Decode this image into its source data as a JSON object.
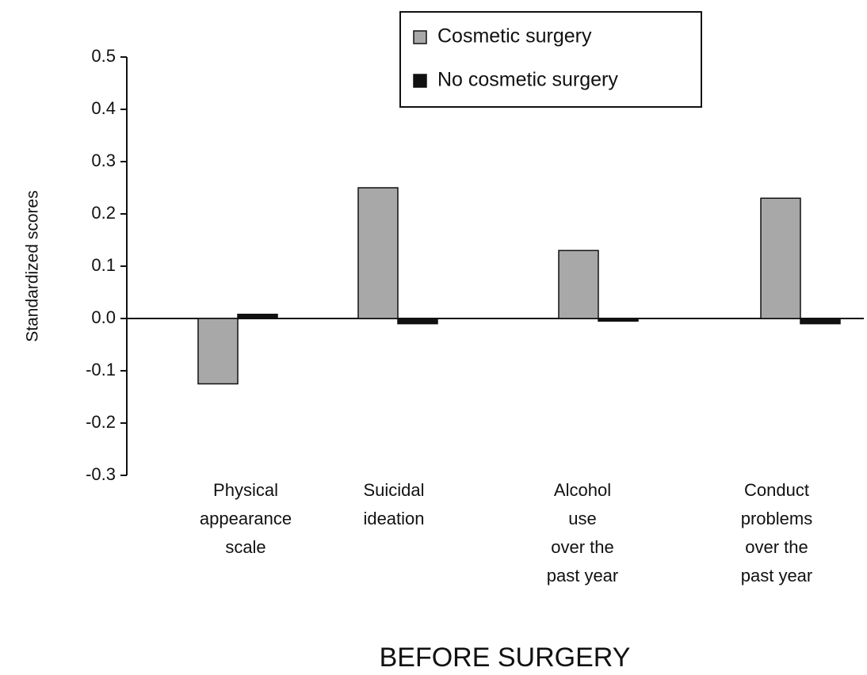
{
  "chart_data": {
    "type": "bar",
    "title": "BEFORE SURGERY",
    "y_label": "Standardized scores",
    "categories": [
      [
        "Physical",
        "appearance",
        "scale"
      ],
      [
        "Suicidal",
        "ideation"
      ],
      [
        "Alcohol",
        "use",
        "over the",
        "past year"
      ],
      [
        "Conduct",
        "problems",
        "over the",
        "past year"
      ]
    ],
    "series": [
      {
        "name": "Cosmetic surgery",
        "color": "#a8a8a8",
        "values": [
          -0.125,
          0.25,
          0.13,
          0.23
        ]
      },
      {
        "name": "No cosmetic surgery",
        "color": "#111111",
        "values": [
          0.008,
          -0.01,
          -0.005,
          -0.01
        ]
      }
    ],
    "ylim": [
      -0.3,
      0.5
    ],
    "yticks": [
      {
        "value": -0.3,
        "label": "-0.3"
      },
      {
        "value": -0.2,
        "label": "-0.2"
      },
      {
        "value": -0.1,
        "label": "-0.1"
      },
      {
        "value": 0,
        "label": "0.0"
      },
      {
        "value": 0.1,
        "label": "0.1"
      },
      {
        "value": 0.2,
        "label": "0.2"
      },
      {
        "value": 0.3,
        "label": "0.3"
      },
      {
        "value": 0.4,
        "label": "0.4"
      },
      {
        "value": 0.5,
        "label": "0.5"
      }
    ],
    "grid": false,
    "legend": "top"
  }
}
